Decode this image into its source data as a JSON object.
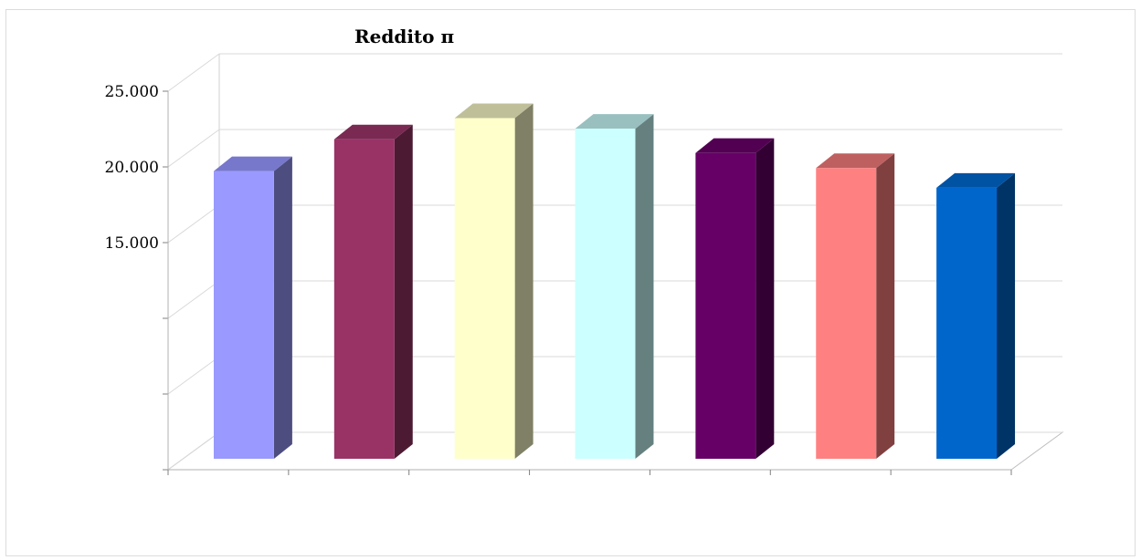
{
  "chart_data": {
    "type": "bar",
    "title": "Reddito π",
    "xlabel": "",
    "ylabel": "",
    "categories": [
      "",
      "",
      "",
      "",
      "",
      "",
      ""
    ],
    "values": [
      19000,
      21100,
      22500,
      21800,
      20200,
      19200,
      17900
    ],
    "ylim": [
      0,
      25000
    ],
    "y_ticks": [
      0,
      5000,
      10000,
      15000,
      20000,
      25000
    ],
    "y_tick_labels": [
      "",
      "",
      "",
      "15.000",
      "20.000",
      "25.000"
    ],
    "colors": [
      {
        "front": "#9999ff",
        "side": "#4d4d80",
        "top": "#7777cc"
      },
      {
        "front": "#993366",
        "side": "#4d1a33",
        "top": "#7a2952"
      },
      {
        "front": "#ffffcc",
        "side": "#808066",
        "top": "#bfbf99"
      },
      {
        "front": "#ccffff",
        "side": "#668080",
        "top": "#99bfbf"
      },
      {
        "front": "#660066",
        "side": "#330033",
        "top": "#520052"
      },
      {
        "front": "#ff8080",
        "side": "#804040",
        "top": "#bf6060"
      },
      {
        "front": "#0066cc",
        "side": "#003366",
        "top": "#0052a3"
      }
    ],
    "grid": true,
    "style": "3d"
  }
}
